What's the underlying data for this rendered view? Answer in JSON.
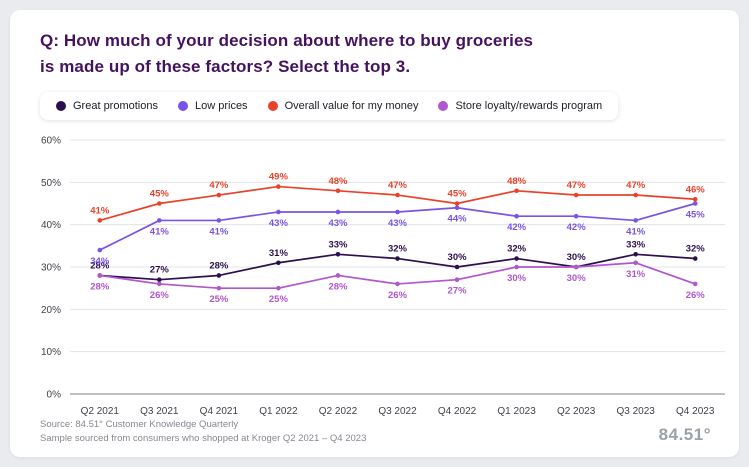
{
  "title": {
    "line1": "Q: How much of your decision about where to buy groceries",
    "line2": "is made up of these factors? Select the top 3."
  },
  "chart_data": {
    "type": "line",
    "title": "Q: How much of your decision about where to buy groceries is made up of these factors? Select the top 3.",
    "categories": [
      "Q2 2021",
      "Q3 2021",
      "Q4 2021",
      "Q1 2022",
      "Q2 2022",
      "Q3 2022",
      "Q4 2022",
      "Q1 2023",
      "Q2 2023",
      "Q3 2023",
      "Q4 2023"
    ],
    "series": [
      {
        "name": "Great promotions",
        "color": "#2c0f4d",
        "label_position": "above",
        "values": [
          28,
          27,
          28,
          31,
          33,
          32,
          30,
          32,
          30,
          33,
          32
        ]
      },
      {
        "name": "Low prices",
        "color": "#7a53e6",
        "label_position": "below",
        "values": [
          34,
          41,
          41,
          43,
          43,
          43,
          44,
          42,
          42,
          41,
          45
        ]
      },
      {
        "name": "Overall value for my money",
        "color": "#e8432a",
        "label_position": "above",
        "values": [
          41,
          45,
          47,
          49,
          48,
          47,
          45,
          48,
          47,
          47,
          46
        ]
      },
      {
        "name": "Store loyalty/rewards program",
        "color": "#b156ce",
        "label_position": "below",
        "values": [
          28,
          26,
          25,
          25,
          28,
          26,
          27,
          30,
          30,
          31,
          26
        ]
      }
    ],
    "ylim": [
      0,
      60
    ],
    "yticks": [
      "0%",
      "10%",
      "20%",
      "30%",
      "40%",
      "50%",
      "60%"
    ],
    "value_suffix": "%",
    "grid": true,
    "legend_position": "top"
  },
  "footer": {
    "source_line1": "Source: 84.51° Customer Knowledge Quarterly",
    "source_line2": "Sample sourced from consumers who shopped at Kroger Q2 2021 – Q4 2023",
    "logo": "84.51°"
  }
}
